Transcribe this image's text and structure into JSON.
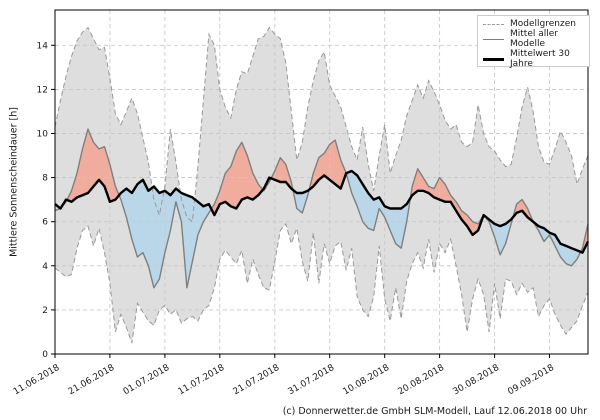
{
  "footer": {
    "text": "(c) Donnerwetter.de GmbH SLM-Modell, Lauf 12.06.2018 00 Uhr"
  },
  "chart_data": {
    "type": "line",
    "title": "",
    "xlabel": "",
    "ylabel": "Mittlere Sonnenscheindauer [h]",
    "ylim": [
      0,
      15.6
    ],
    "yticks": [
      0,
      2,
      4,
      6,
      8,
      10,
      12,
      14
    ],
    "x_total_days": 97,
    "x_tick_days": [
      0,
      10,
      20,
      30,
      40,
      50,
      60,
      70,
      80,
      90
    ],
    "x_tick_labels": [
      "11.06.2018",
      "21.06.2018",
      "01.07.2018",
      "11.07.2018",
      "21.07.2018",
      "31.07.2018",
      "10.08.2018",
      "20.08.2018",
      "30.08.2018",
      "09.09.2018"
    ],
    "grid": true,
    "legend": {
      "position": "top-right",
      "entries": [
        {
          "label": "Modellgrenzen",
          "style": "dashed-gray"
        },
        {
          "label": "Mittel aller Modelle",
          "style": "solid-gray"
        },
        {
          "label": "Mittelwert 30 Jahre",
          "style": "solid-black-thick"
        }
      ]
    },
    "colors": {
      "band_fill": "#dedede",
      "band_edge": "#999999",
      "model_mean": "#7f7f7f",
      "clim_mean": "#000000",
      "above_fill": "#f0ad9e",
      "below_fill": "#b9d7e8",
      "grid": "#c8c8c8",
      "spine": "#000000"
    },
    "series": [
      {
        "key": "top",
        "name": "Modellgrenzen (obere Grenze)",
        "values": [
          10.3,
          11.5,
          12.6,
          13.5,
          14.2,
          14.6,
          14.8,
          14.3,
          13.8,
          13.9,
          12.5,
          10.9,
          10.4,
          11.0,
          11.6,
          10.9,
          9.8,
          8.7,
          7.0,
          6.3,
          7.6,
          10.2,
          8.7,
          7.0,
          6.2,
          6.0,
          8.5,
          11.5,
          14.5,
          14.0,
          12.0,
          11.2,
          10.7,
          12.0,
          12.8,
          12.7,
          13.5,
          14.3,
          14.4,
          14.8,
          14.5,
          14.3,
          13.2,
          11.0,
          8.8,
          9.6,
          11.2,
          12.4,
          13.3,
          13.7,
          12.2,
          11.7,
          11.2,
          10.3,
          9.4,
          8.8,
          10.3,
          8.6,
          7.4,
          9.0,
          10.4,
          8.2,
          9.0,
          9.7,
          10.8,
          11.5,
          12.2,
          11.6,
          12.4,
          11.9,
          11.3,
          10.6,
          10.2,
          10.4,
          9.6,
          9.4,
          9.6,
          11.3,
          10.0,
          9.4,
          9.2,
          8.8,
          8.5,
          8.6,
          9.8,
          11.2,
          12.1,
          11.0,
          9.4,
          8.7,
          8.6,
          9.3,
          10.1,
          9.6,
          9.0,
          7.7,
          8.4,
          9.0
        ]
      },
      {
        "key": "bottom",
        "name": "Modellgrenzen (untere Grenze)",
        "values": [
          3.9,
          3.7,
          3.5,
          3.6,
          4.8,
          5.6,
          5.8,
          4.9,
          5.7,
          4.6,
          3.2,
          1.0,
          1.8,
          1.2,
          0.5,
          2.3,
          1.9,
          1.5,
          1.3,
          2.0,
          2.2,
          1.8,
          2.0,
          1.4,
          1.6,
          1.7,
          1.5,
          2.0,
          2.2,
          3.0,
          4.3,
          4.7,
          4.4,
          4.1,
          4.7,
          3.2,
          4.3,
          3.6,
          3.0,
          2.9,
          4.2,
          5.6,
          5.9,
          5.0,
          5.7,
          4.2,
          3.3,
          5.5,
          3.2,
          5.0,
          4.1,
          4.9,
          5.1,
          3.8,
          4.8,
          2.6,
          2.0,
          1.7,
          2.6,
          4.9,
          2.5,
          1.5,
          3.0,
          1.6,
          3.3,
          4.1,
          4.6,
          3.9,
          5.2,
          3.7,
          5.0,
          4.6,
          5.2,
          4.0,
          2.7,
          1.0,
          2.5,
          3.4,
          2.7,
          1.0,
          3.2,
          1.6,
          3.4,
          3.3,
          2.7,
          3.2,
          2.8,
          3.0,
          1.7,
          2.2,
          2.5,
          1.8,
          1.3,
          0.9,
          1.2,
          1.5,
          2.2,
          2.8
        ]
      },
      {
        "key": "mean",
        "name": "Mittel aller Modelle",
        "values": [
          6.5,
          6.6,
          6.9,
          7.4,
          8.2,
          9.3,
          10.2,
          9.6,
          9.3,
          9.4,
          8.6,
          7.6,
          7.0,
          6.2,
          5.2,
          4.4,
          4.6,
          4.0,
          3.0,
          3.4,
          4.6,
          5.6,
          6.9,
          6.0,
          3.0,
          4.2,
          5.4,
          6.0,
          6.4,
          6.8,
          7.4,
          8.2,
          8.5,
          9.2,
          9.6,
          9.0,
          8.2,
          7.7,
          7.4,
          7.8,
          8.3,
          8.9,
          8.6,
          7.8,
          6.6,
          6.4,
          7.2,
          8.2,
          8.9,
          9.1,
          9.5,
          9.7,
          8.8,
          8.2,
          7.3,
          6.7,
          6.0,
          5.7,
          5.6,
          6.6,
          6.2,
          5.6,
          5.0,
          4.8,
          6.0,
          7.6,
          8.4,
          8.0,
          7.6,
          7.5,
          8.0,
          7.7,
          7.2,
          6.9,
          6.5,
          6.3,
          6.0,
          5.9,
          6.3,
          6.0,
          5.3,
          4.5,
          5.0,
          5.9,
          6.8,
          7.0,
          6.6,
          6.0,
          5.6,
          5.1,
          5.4,
          4.9,
          4.4,
          4.1,
          4.0,
          4.3,
          4.8,
          5.9
        ]
      },
      {
        "key": "clim",
        "name": "Mittelwert 30 Jahre",
        "values": [
          6.8,
          6.6,
          7.0,
          6.9,
          7.1,
          7.2,
          7.3,
          7.6,
          7.9,
          7.6,
          6.9,
          7.0,
          7.3,
          7.5,
          7.3,
          7.7,
          7.9,
          7.4,
          7.6,
          7.3,
          7.4,
          7.2,
          7.5,
          7.3,
          7.2,
          7.1,
          6.9,
          6.7,
          6.8,
          6.3,
          6.8,
          6.9,
          6.7,
          6.6,
          7.0,
          7.1,
          7.0,
          7.2,
          7.5,
          8.0,
          7.9,
          7.8,
          7.8,
          7.5,
          7.3,
          7.3,
          7.4,
          7.6,
          7.9,
          8.1,
          7.9,
          7.7,
          7.5,
          8.2,
          8.3,
          8.1,
          7.7,
          7.3,
          7.0,
          7.1,
          6.7,
          6.6,
          6.6,
          6.6,
          6.8,
          7.2,
          7.4,
          7.4,
          7.3,
          7.1,
          7.0,
          6.9,
          6.9,
          6.5,
          6.1,
          5.8,
          5.4,
          5.6,
          6.3,
          6.1,
          5.9,
          5.8,
          5.9,
          6.1,
          6.4,
          6.5,
          6.2,
          6.0,
          5.8,
          5.7,
          5.5,
          5.4,
          5.0,
          4.9,
          4.8,
          4.7,
          4.6,
          5.1
        ]
      }
    ]
  }
}
